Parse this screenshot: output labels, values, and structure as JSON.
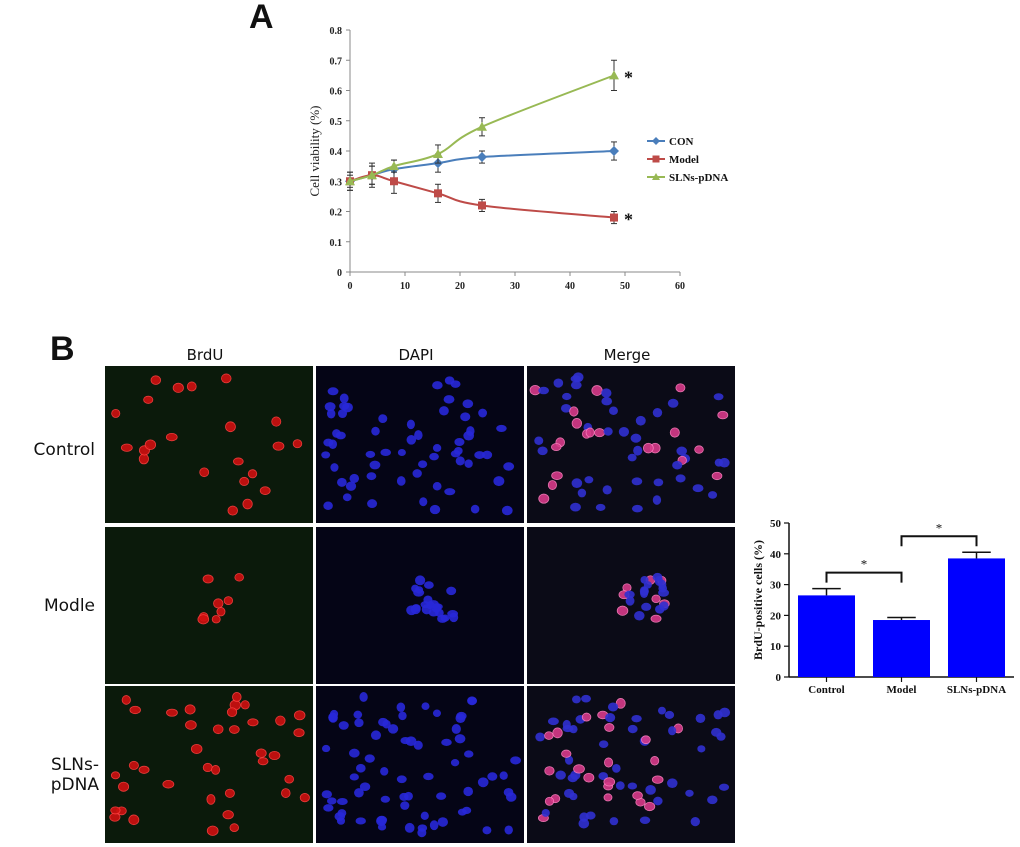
{
  "panel_a_label": "A",
  "panel_b_label": "B",
  "chart_data": [
    {
      "type": "line",
      "title": "",
      "xlabel": "",
      "ylabel": "Cell viability (%)",
      "xlim": [
        0,
        60
      ],
      "ylim": [
        0,
        0.8
      ],
      "xticks": [
        0,
        10,
        20,
        30,
        40,
        50,
        60
      ],
      "yticks": [
        0,
        0.1,
        0.2,
        0.3,
        0.4,
        0.5,
        0.6,
        0.7,
        0.8
      ],
      "legend_position": "right",
      "series": [
        {
          "name": "CON",
          "color": "#4a7ebb",
          "marker": "diamond",
          "x": [
            0,
            4,
            8,
            16,
            24,
            48
          ],
          "y": [
            0.3,
            0.32,
            0.34,
            0.36,
            0.38,
            0.4
          ],
          "err": [
            0.02,
            0.03,
            0.03,
            0.03,
            0.02,
            0.03
          ]
        },
        {
          "name": "Model",
          "color": "#be4b48",
          "marker": "square",
          "x": [
            0,
            4,
            8,
            16,
            24,
            48
          ],
          "y": [
            0.3,
            0.32,
            0.3,
            0.26,
            0.22,
            0.18
          ],
          "err": [
            0.03,
            0.04,
            0.04,
            0.03,
            0.02,
            0.02
          ]
        },
        {
          "name": "SLNs-pDNA",
          "color": "#98b954",
          "marker": "triangle",
          "x": [
            0,
            4,
            8,
            16,
            24,
            48
          ],
          "y": [
            0.3,
            0.32,
            0.35,
            0.39,
            0.48,
            0.65
          ],
          "err": [
            0.03,
            0.03,
            0.02,
            0.03,
            0.03,
            0.05
          ]
        }
      ],
      "annotations": [
        {
          "text": "*",
          "series": "SLNs-pDNA"
        },
        {
          "text": "*",
          "series": "Model"
        }
      ]
    },
    {
      "type": "bar",
      "title": "",
      "xlabel": "",
      "ylabel": "BrdU-positive cells (%)",
      "ylim": [
        0,
        50
      ],
      "yticks": [
        0,
        10,
        20,
        30,
        40,
        50
      ],
      "categories": [
        "Control",
        "Model",
        "SLNs-pDNA"
      ],
      "values": [
        26.5,
        18.5,
        38.5
      ],
      "err": [
        2.2,
        0.8,
        2.0
      ],
      "bar_color": "#0000ff",
      "annotations": [
        {
          "text": "*",
          "between": [
            "Control",
            "Model"
          ]
        },
        {
          "text": "*",
          "between": [
            "Model",
            "SLNs-pDNA"
          ]
        }
      ]
    }
  ],
  "micrographs": {
    "columns": [
      "BrdU",
      "DAPI",
      "Merge"
    ],
    "rows": [
      "Control",
      "Modle",
      "SLNs-pDNA"
    ]
  }
}
